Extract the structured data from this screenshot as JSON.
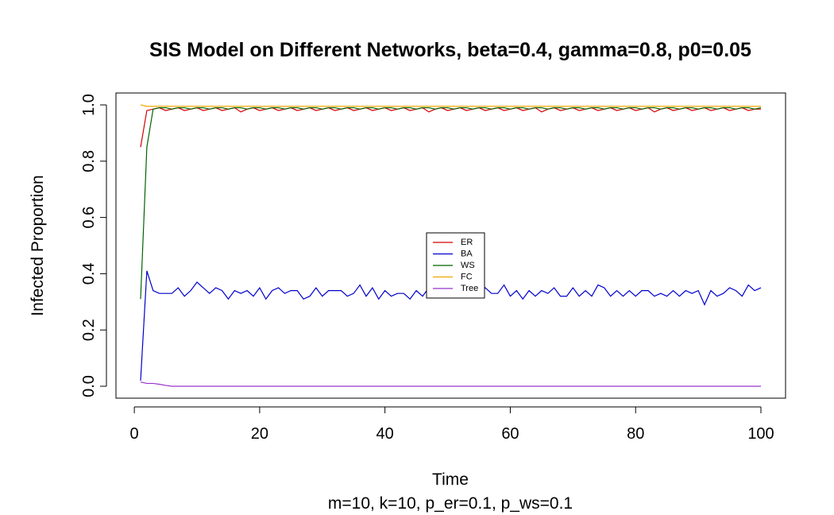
{
  "chart_data": {
    "type": "line",
    "title": "SIS Model on Different Networks, beta=0.4, gamma=0.8, p0=0.05",
    "xlabel": "Time",
    "ylabel": "Infected Proportion",
    "subtitle": "m=10, k=10, p_er=0.1, p_ws=0.1",
    "xlim": [
      1,
      100
    ],
    "ylim": [
      0,
      1
    ],
    "xticks": [
      0,
      20,
      40,
      60,
      80,
      100
    ],
    "yticks": [
      0.0,
      0.2,
      0.4,
      0.6,
      0.8,
      1.0
    ],
    "xtick_labels": [
      "0",
      "20",
      "40",
      "60",
      "80",
      "100"
    ],
    "ytick_labels": [
      "0.0",
      "0.2",
      "0.4",
      "0.6",
      "0.8",
      "1.0"
    ],
    "grid": false,
    "legend_position": "center",
    "series": [
      {
        "name": "ER",
        "color": "#d40000",
        "values": [
          0.85,
          0.98,
          0.985,
          0.99,
          0.98,
          0.985,
          0.99,
          0.98,
          0.985,
          0.99,
          0.98,
          0.985,
          0.99,
          0.98,
          0.985,
          0.99,
          0.975,
          0.985,
          0.99,
          0.98,
          0.985,
          0.99,
          0.98,
          0.985,
          0.99,
          0.98,
          0.985,
          0.99,
          0.98,
          0.985,
          0.99,
          0.98,
          0.985,
          0.99,
          0.98,
          0.985,
          0.99,
          0.98,
          0.985,
          0.99,
          0.98,
          0.985,
          0.99,
          0.98,
          0.985,
          0.99,
          0.975,
          0.985,
          0.99,
          0.98,
          0.985,
          0.99,
          0.98,
          0.985,
          0.99,
          0.98,
          0.985,
          0.99,
          0.98,
          0.985,
          0.99,
          0.98,
          0.985,
          0.99,
          0.975,
          0.985,
          0.99,
          0.98,
          0.985,
          0.99,
          0.98,
          0.985,
          0.99,
          0.98,
          0.985,
          0.99,
          0.98,
          0.985,
          0.99,
          0.98,
          0.985,
          0.99,
          0.975,
          0.985,
          0.99,
          0.98,
          0.985,
          0.99,
          0.98,
          0.985,
          0.99,
          0.98,
          0.985,
          0.99,
          0.98,
          0.985,
          0.99,
          0.98,
          0.985,
          0.985
        ]
      },
      {
        "name": "BA",
        "color": "#0000cc",
        "values": [
          0.02,
          0.41,
          0.34,
          0.33,
          0.33,
          0.33,
          0.35,
          0.32,
          0.34,
          0.37,
          0.35,
          0.33,
          0.35,
          0.34,
          0.31,
          0.34,
          0.33,
          0.34,
          0.32,
          0.35,
          0.31,
          0.34,
          0.35,
          0.33,
          0.34,
          0.34,
          0.31,
          0.32,
          0.35,
          0.32,
          0.34,
          0.34,
          0.34,
          0.32,
          0.33,
          0.36,
          0.32,
          0.35,
          0.31,
          0.34,
          0.32,
          0.33,
          0.33,
          0.31,
          0.34,
          0.32,
          0.35,
          0.33,
          0.32,
          0.34,
          0.33,
          0.35,
          0.32,
          0.34,
          0.33,
          0.35,
          0.33,
          0.33,
          0.36,
          0.32,
          0.34,
          0.31,
          0.34,
          0.32,
          0.34,
          0.33,
          0.35,
          0.32,
          0.32,
          0.35,
          0.32,
          0.34,
          0.32,
          0.36,
          0.35,
          0.32,
          0.34,
          0.32,
          0.34,
          0.32,
          0.34,
          0.34,
          0.32,
          0.33,
          0.32,
          0.34,
          0.32,
          0.34,
          0.33,
          0.34,
          0.29,
          0.34,
          0.32,
          0.33,
          0.35,
          0.34,
          0.32,
          0.36,
          0.34,
          0.35
        ]
      },
      {
        "name": "WS",
        "color": "#006400",
        "values": [
          0.31,
          0.85,
          0.985,
          0.99,
          0.99,
          0.985,
          0.99,
          0.99,
          0.985,
          0.99,
          0.99,
          0.985,
          0.99,
          0.99,
          0.985,
          0.99,
          0.99,
          0.985,
          0.99,
          0.99,
          0.985,
          0.99,
          0.99,
          0.985,
          0.99,
          0.99,
          0.985,
          0.99,
          0.99,
          0.985,
          0.99,
          0.99,
          0.985,
          0.99,
          0.99,
          0.985,
          0.99,
          0.99,
          0.985,
          0.99,
          0.99,
          0.985,
          0.99,
          0.99,
          0.985,
          0.99,
          0.99,
          0.985,
          0.99,
          0.99,
          0.985,
          0.99,
          0.99,
          0.985,
          0.99,
          0.99,
          0.985,
          0.99,
          0.99,
          0.985,
          0.99,
          0.99,
          0.985,
          0.99,
          0.99,
          0.985,
          0.99,
          0.99,
          0.985,
          0.99,
          0.99,
          0.985,
          0.99,
          0.99,
          0.985,
          0.99,
          0.99,
          0.985,
          0.99,
          0.99,
          0.985,
          0.99,
          0.99,
          0.985,
          0.99,
          0.99,
          0.985,
          0.99,
          0.99,
          0.985,
          0.99,
          0.99,
          0.985,
          0.99,
          0.99,
          0.985,
          0.99,
          0.99,
          0.985,
          0.99
        ]
      },
      {
        "name": "FC",
        "color": "#f0a800",
        "values": [
          1.0,
          0.995,
          0.995,
          0.995,
          0.995,
          0.995,
          0.995,
          0.995,
          0.995,
          0.995,
          0.995,
          0.995,
          0.995,
          0.995,
          0.995,
          0.995,
          0.995,
          0.995,
          0.995,
          0.995,
          0.995,
          0.995,
          0.995,
          0.995,
          0.995,
          0.995,
          0.995,
          0.995,
          0.995,
          0.995,
          0.995,
          0.995,
          0.995,
          0.995,
          0.995,
          0.995,
          0.995,
          0.995,
          0.995,
          0.995,
          0.995,
          0.995,
          0.995,
          0.995,
          0.995,
          0.995,
          0.995,
          0.995,
          0.995,
          0.995,
          0.995,
          0.995,
          0.995,
          0.995,
          0.995,
          0.995,
          0.995,
          0.995,
          0.995,
          0.995,
          0.995,
          0.995,
          0.995,
          0.995,
          0.995,
          0.995,
          0.995,
          0.995,
          0.995,
          0.995,
          0.995,
          0.995,
          0.995,
          0.995,
          0.995,
          0.995,
          0.995,
          0.995,
          0.995,
          0.995,
          0.995,
          0.995,
          0.995,
          0.995,
          0.995,
          0.995,
          0.995,
          0.995,
          0.995,
          0.995,
          0.995,
          0.995,
          0.995,
          0.995,
          0.995,
          0.995,
          0.995,
          0.995,
          0.995,
          0.995
        ]
      },
      {
        "name": "Tree",
        "color": "#9932cc",
        "values": [
          0.015,
          0.01,
          0.01,
          0.007,
          0.003,
          0,
          0,
          0,
          0,
          0,
          0,
          0,
          0,
          0,
          0,
          0,
          0,
          0,
          0,
          0,
          0,
          0,
          0,
          0,
          0,
          0,
          0,
          0,
          0,
          0,
          0,
          0,
          0,
          0,
          0,
          0,
          0,
          0,
          0,
          0,
          0,
          0,
          0,
          0,
          0,
          0,
          0,
          0,
          0,
          0,
          0,
          0,
          0,
          0,
          0,
          0,
          0,
          0,
          0,
          0,
          0,
          0,
          0,
          0,
          0,
          0,
          0,
          0,
          0,
          0,
          0,
          0,
          0,
          0,
          0,
          0,
          0,
          0,
          0,
          0,
          0,
          0,
          0,
          0,
          0,
          0,
          0,
          0,
          0,
          0,
          0,
          0,
          0,
          0,
          0,
          0,
          0,
          0,
          0,
          0
        ]
      }
    ]
  }
}
